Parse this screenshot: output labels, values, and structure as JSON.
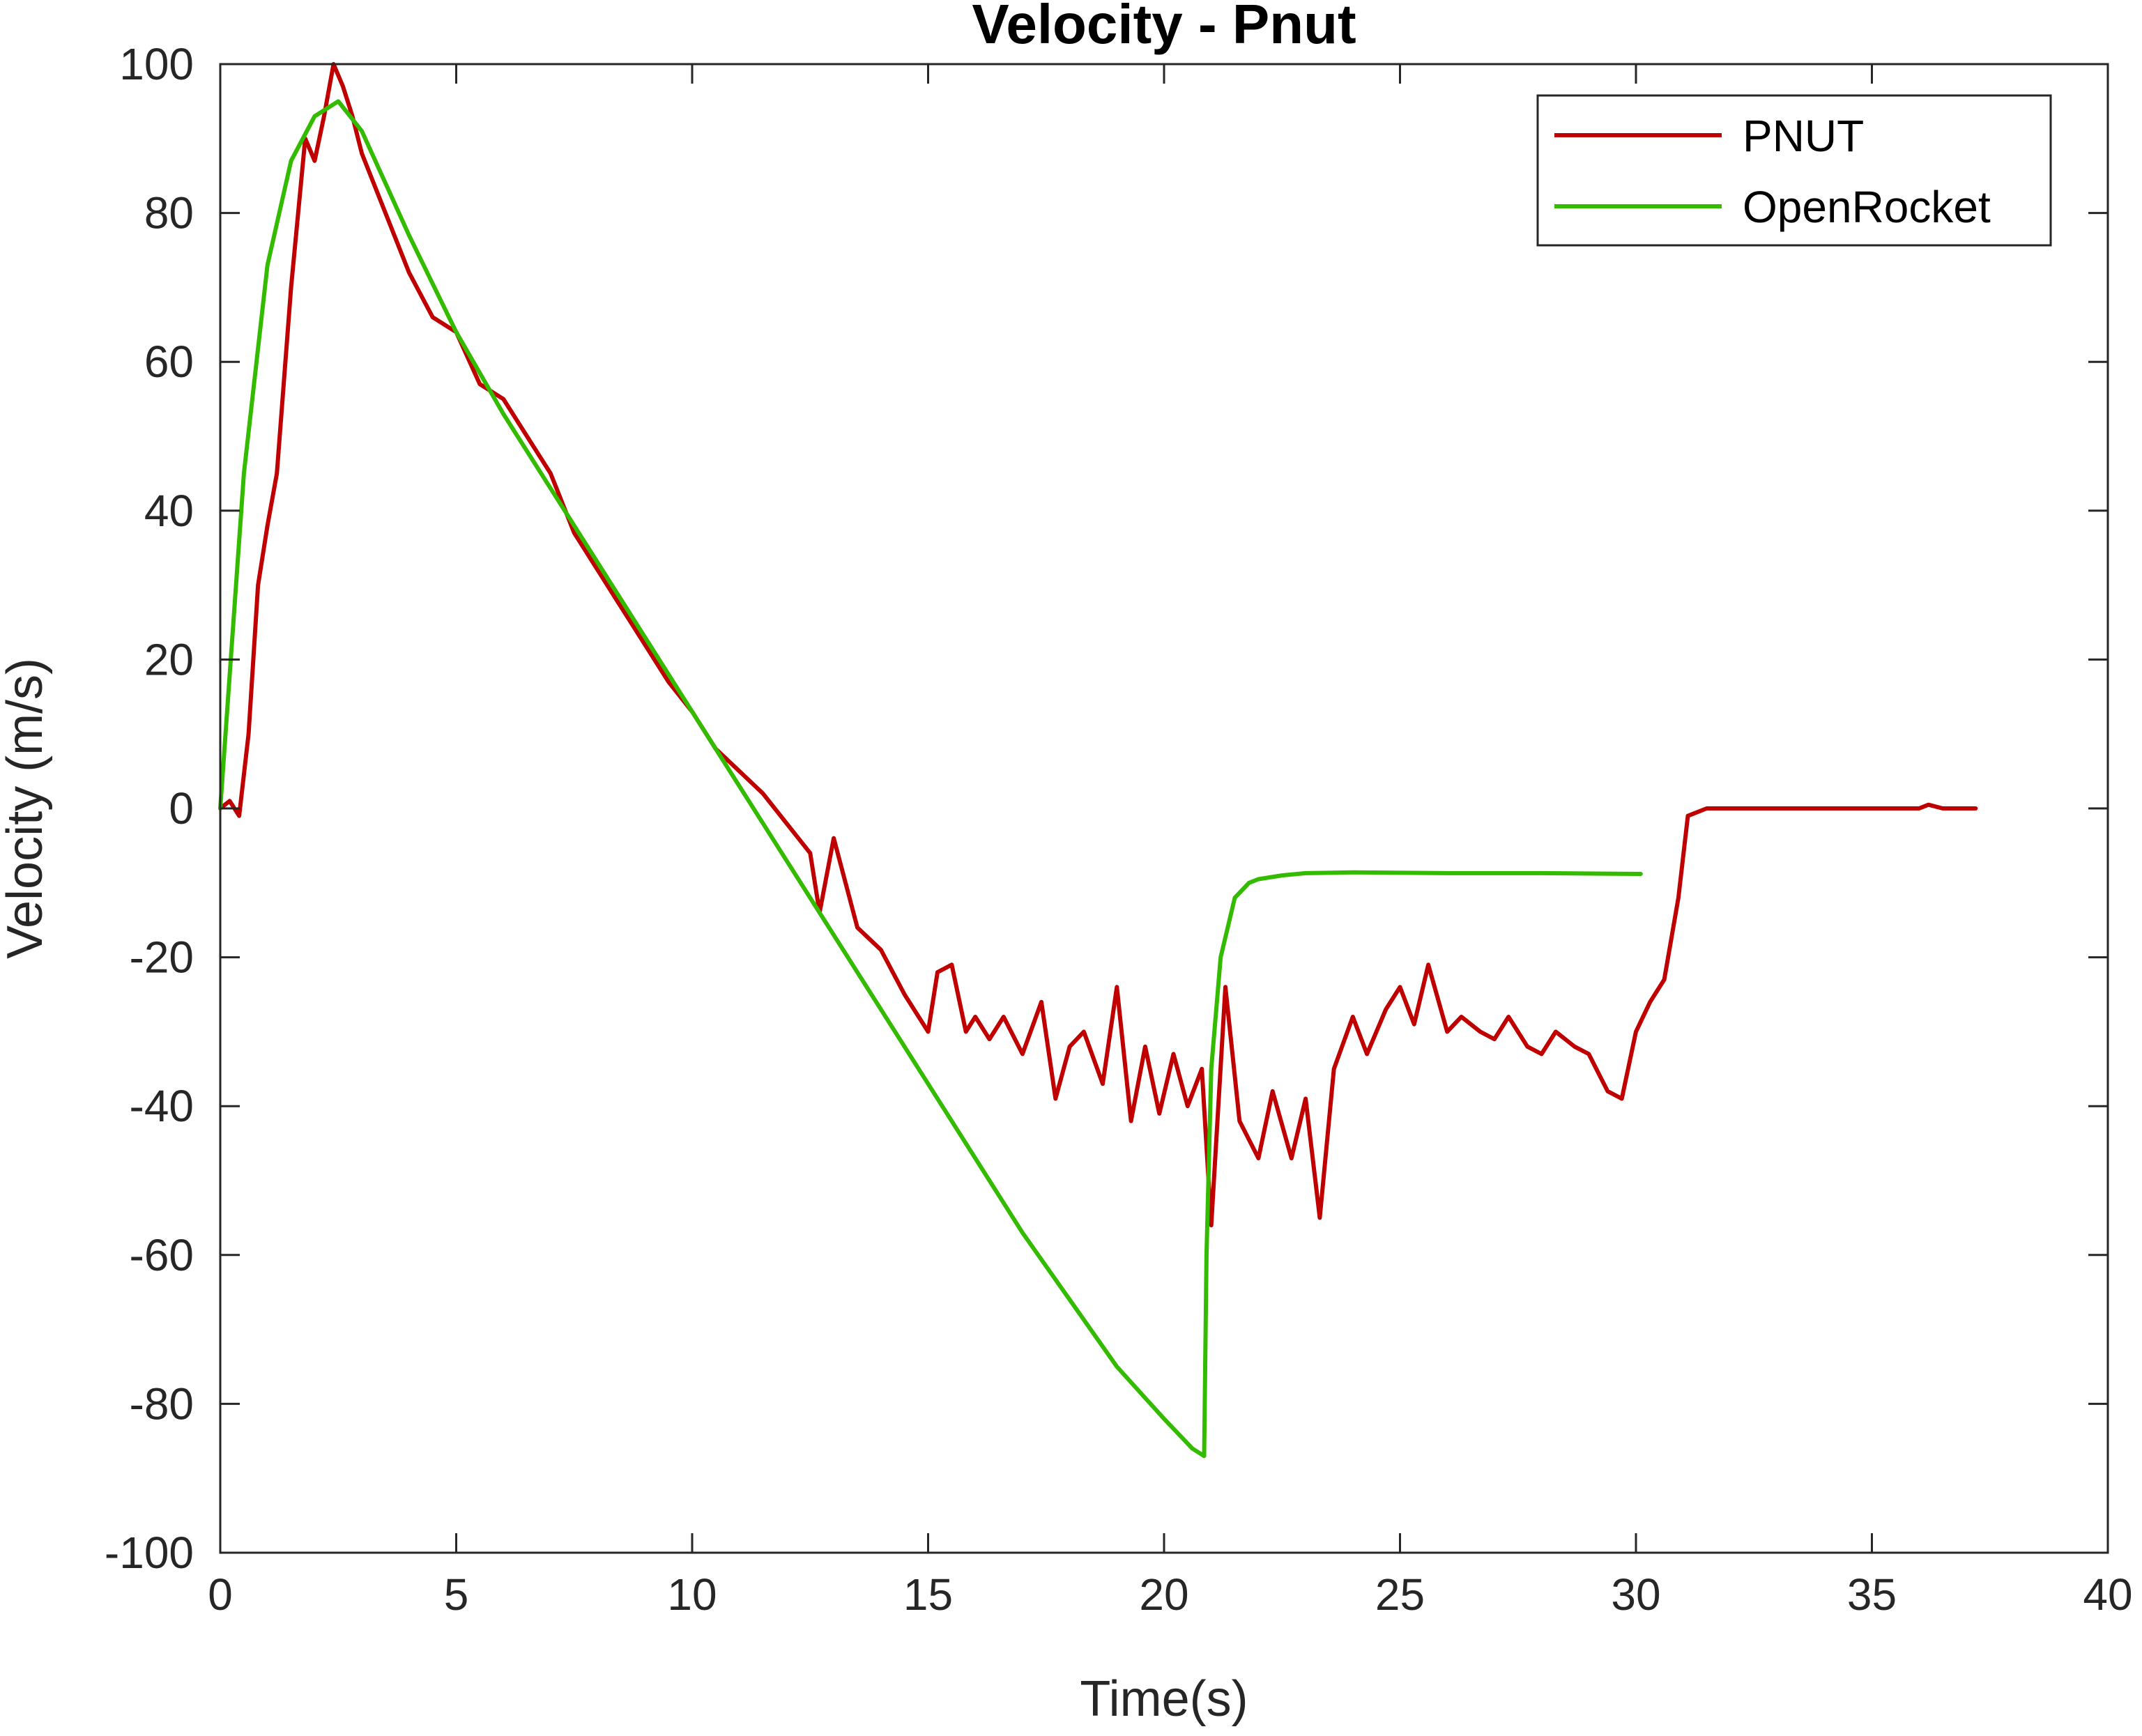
{
  "chart_data": {
    "type": "line",
    "title": "Velocity - Pnut",
    "xlabel": "Time(s)",
    "ylabel": "Velocity (m/s)",
    "xlim": [
      0,
      40
    ],
    "ylim": [
      -100,
      100
    ],
    "xticks": [
      0,
      5,
      10,
      15,
      20,
      25,
      30,
      35,
      40
    ],
    "yticks": [
      -100,
      -80,
      -60,
      -40,
      -20,
      0,
      20,
      40,
      60,
      80,
      100
    ],
    "xtick_labels": [
      "0",
      "5",
      "10",
      "15",
      "20",
      "25",
      "30",
      "35",
      "40"
    ],
    "ytick_labels": [
      "-100",
      "-80",
      "-60",
      "-40",
      "-20",
      "0",
      "20",
      "40",
      "60",
      "80",
      "100"
    ],
    "grid": false,
    "box": true,
    "legend": {
      "position": "top-right"
    },
    "series": [
      {
        "name": "PNUT",
        "color": "#c00000",
        "x": [
          0,
          0.2,
          0.4,
          0.6,
          0.8,
          1.0,
          1.2,
          1.5,
          1.8,
          2.0,
          2.2,
          2.4,
          2.6,
          2.8,
          3.0,
          3.5,
          4.0,
          4.5,
          5.0,
          5.5,
          6.0,
          6.5,
          7.0,
          7.5,
          8.0,
          8.5,
          9.0,
          9.5,
          10.0,
          10.5,
          11.0,
          11.5,
          12.0,
          12.5,
          12.7,
          13.0,
          13.5,
          14.0,
          14.5,
          15.0,
          15.2,
          15.5,
          15.8,
          16.0,
          16.3,
          16.6,
          17.0,
          17.4,
          17.7,
          18.0,
          18.3,
          18.7,
          19.0,
          19.3,
          19.6,
          19.9,
          20.2,
          20.5,
          20.8,
          21.0,
          21.3,
          21.6,
          22.0,
          22.3,
          22.7,
          23.0,
          23.3,
          23.6,
          24.0,
          24.3,
          24.7,
          25.0,
          25.3,
          25.6,
          26.0,
          26.3,
          26.7,
          27.0,
          27.3,
          27.7,
          28.0,
          28.3,
          28.7,
          29.0,
          29.4,
          29.7,
          30.0,
          30.3,
          30.6,
          30.9,
          31.1,
          31.5,
          32.0,
          33.0,
          34.0,
          35.0,
          36.0,
          36.2,
          36.5,
          37.2
        ],
        "values": [
          0,
          1,
          -1,
          10,
          30,
          38,
          45,
          70,
          90,
          87,
          93,
          100,
          97,
          93,
          88,
          80,
          72,
          66,
          64,
          57,
          55,
          50,
          45,
          37,
          32,
          27,
          22,
          17,
          13,
          8,
          5,
          2,
          -2,
          -6,
          -14,
          -4,
          -16,
          -19,
          -25,
          -30,
          -22,
          -21,
          -30,
          -28,
          -31,
          -28,
          -33,
          -26,
          -39,
          -32,
          -30,
          -37,
          -24,
          -42,
          -32,
          -41,
          -33,
          -40,
          -35,
          -56,
          -24,
          -42,
          -47,
          -38,
          -47,
          -39,
          -55,
          -35,
          -28,
          -33,
          -27,
          -24,
          -29,
          -21,
          -30,
          -28,
          -30,
          -31,
          -28,
          -32,
          -33,
          -30,
          -32,
          -33,
          -38,
          -39,
          -30,
          -26,
          -23,
          -12,
          -1,
          0,
          0,
          0,
          0,
          0,
          0,
          0.5,
          0,
          0
        ]
      },
      {
        "name": "OpenRocket",
        "color": "#33bb00",
        "x": [
          0,
          0.5,
          1.0,
          1.5,
          2.0,
          2.5,
          3.0,
          3.5,
          4.0,
          5.0,
          6.0,
          7.0,
          8.0,
          9.0,
          10.0,
          11.0,
          12.0,
          13.0,
          14.0,
          15.0,
          16.0,
          17.0,
          18.0,
          19.0,
          20.0,
          20.6,
          20.85,
          20.9,
          21.0,
          21.2,
          21.5,
          21.8,
          22.0,
          22.5,
          23.0,
          24.0,
          26.0,
          28.0,
          30.1
        ],
        "values": [
          0,
          45,
          73,
          87,
          93,
          95,
          91,
          84,
          77,
          64,
          53,
          43,
          33,
          23,
          13,
          3,
          -7,
          -17,
          -27,
          -37,
          -47,
          -57,
          -66,
          -75,
          -82,
          -86,
          -87,
          -60,
          -35,
          -20,
          -12,
          -10,
          -9.5,
          -9,
          -8.7,
          -8.6,
          -8.7,
          -8.7,
          -8.8
        ]
      }
    ]
  }
}
